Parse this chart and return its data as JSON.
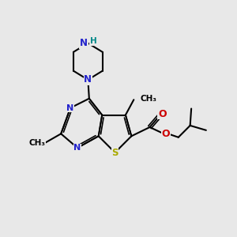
{
  "background_color": "#e8e8e8",
  "bond_color": "#000000",
  "N_color": "#2222cc",
  "S_color": "#aaaa00",
  "O_color": "#cc0000",
  "H_color": "#008888",
  "lw": 1.5,
  "lw_dbl": 1.2,
  "figsize": [
    3.0,
    3.0
  ],
  "dpi": 100,
  "xlim": [
    0,
    10
  ],
  "ylim": [
    0,
    10
  ]
}
